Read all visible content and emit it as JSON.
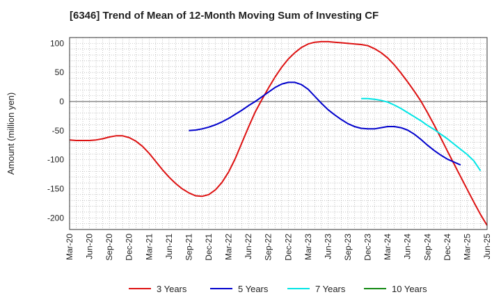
{
  "chart_data": {
    "type": "line",
    "title": "[6346]  Trend of Mean of 12-Month Moving Sum of Investing CF",
    "xlabel": "",
    "ylabel": "Amount (million yen)",
    "ylim": [
      -220,
      110
    ],
    "yticks": [
      100,
      50,
      0,
      -50,
      -100,
      -150,
      -200
    ],
    "x_tick_labels": [
      "Mar-20",
      "Jun-20",
      "Sep-20",
      "Dec-20",
      "Mar-21",
      "Jun-21",
      "Sep-21",
      "Dec-21",
      "Mar-22",
      "Jun-22",
      "Sep-22",
      "Dec-22",
      "Mar-23",
      "Jun-23",
      "Sep-23",
      "Dec-23",
      "Mar-24",
      "Jun-24",
      "Sep-24",
      "Dec-24",
      "Mar-25",
      "Jun-25"
    ],
    "x_count": 64,
    "grid": true,
    "legend_position": "bottom",
    "series": [
      {
        "name": "3 Years",
        "color": "#dd1111",
        "start_index": 0,
        "values": [
          -66,
          -67,
          -67,
          -67,
          -66,
          -64,
          -61,
          -59,
          -59,
          -62,
          -68,
          -77,
          -89,
          -103,
          -117,
          -130,
          -141,
          -150,
          -157,
          -162,
          -163,
          -160,
          -152,
          -139,
          -121,
          -98,
          -71,
          -44,
          -18,
          3,
          23,
          42,
          59,
          73,
          84,
          93,
          99,
          102,
          103,
          103,
          102,
          101,
          100,
          99,
          98,
          96,
          91,
          84,
          75,
          63,
          49,
          34,
          18,
          1,
          -19,
          -40,
          -62,
          -85,
          -107,
          -129,
          -151,
          -173,
          -194,
          -213
        ]
      },
      {
        "name": "5 Years",
        "color": "#0000cc",
        "start_index": 18,
        "values": [
          -50,
          -49,
          -47,
          -44,
          -40,
          -35,
          -29,
          -22,
          -15,
          -7,
          0,
          8,
          16,
          24,
          30,
          33,
          33,
          29,
          21,
          9,
          -3,
          -14,
          -23,
          -31,
          -38,
          -43,
          -46,
          -47,
          -47,
          -45,
          -43,
          -43,
          -45,
          -49,
          -56,
          -65,
          -75,
          -84,
          -92,
          -99,
          -104,
          -109
        ]
      },
      {
        "name": "7 Years",
        "color": "#00e5e5",
        "start_index": 44,
        "values": [
          5,
          5,
          4,
          2,
          -1,
          -6,
          -12,
          -19,
          -26,
          -33,
          -41,
          -48,
          -56,
          -64,
          -73,
          -82,
          -91,
          -102,
          -119
        ]
      },
      {
        "name": "10 Years",
        "color": "#118811",
        "start_index": 0,
        "values": []
      }
    ]
  }
}
